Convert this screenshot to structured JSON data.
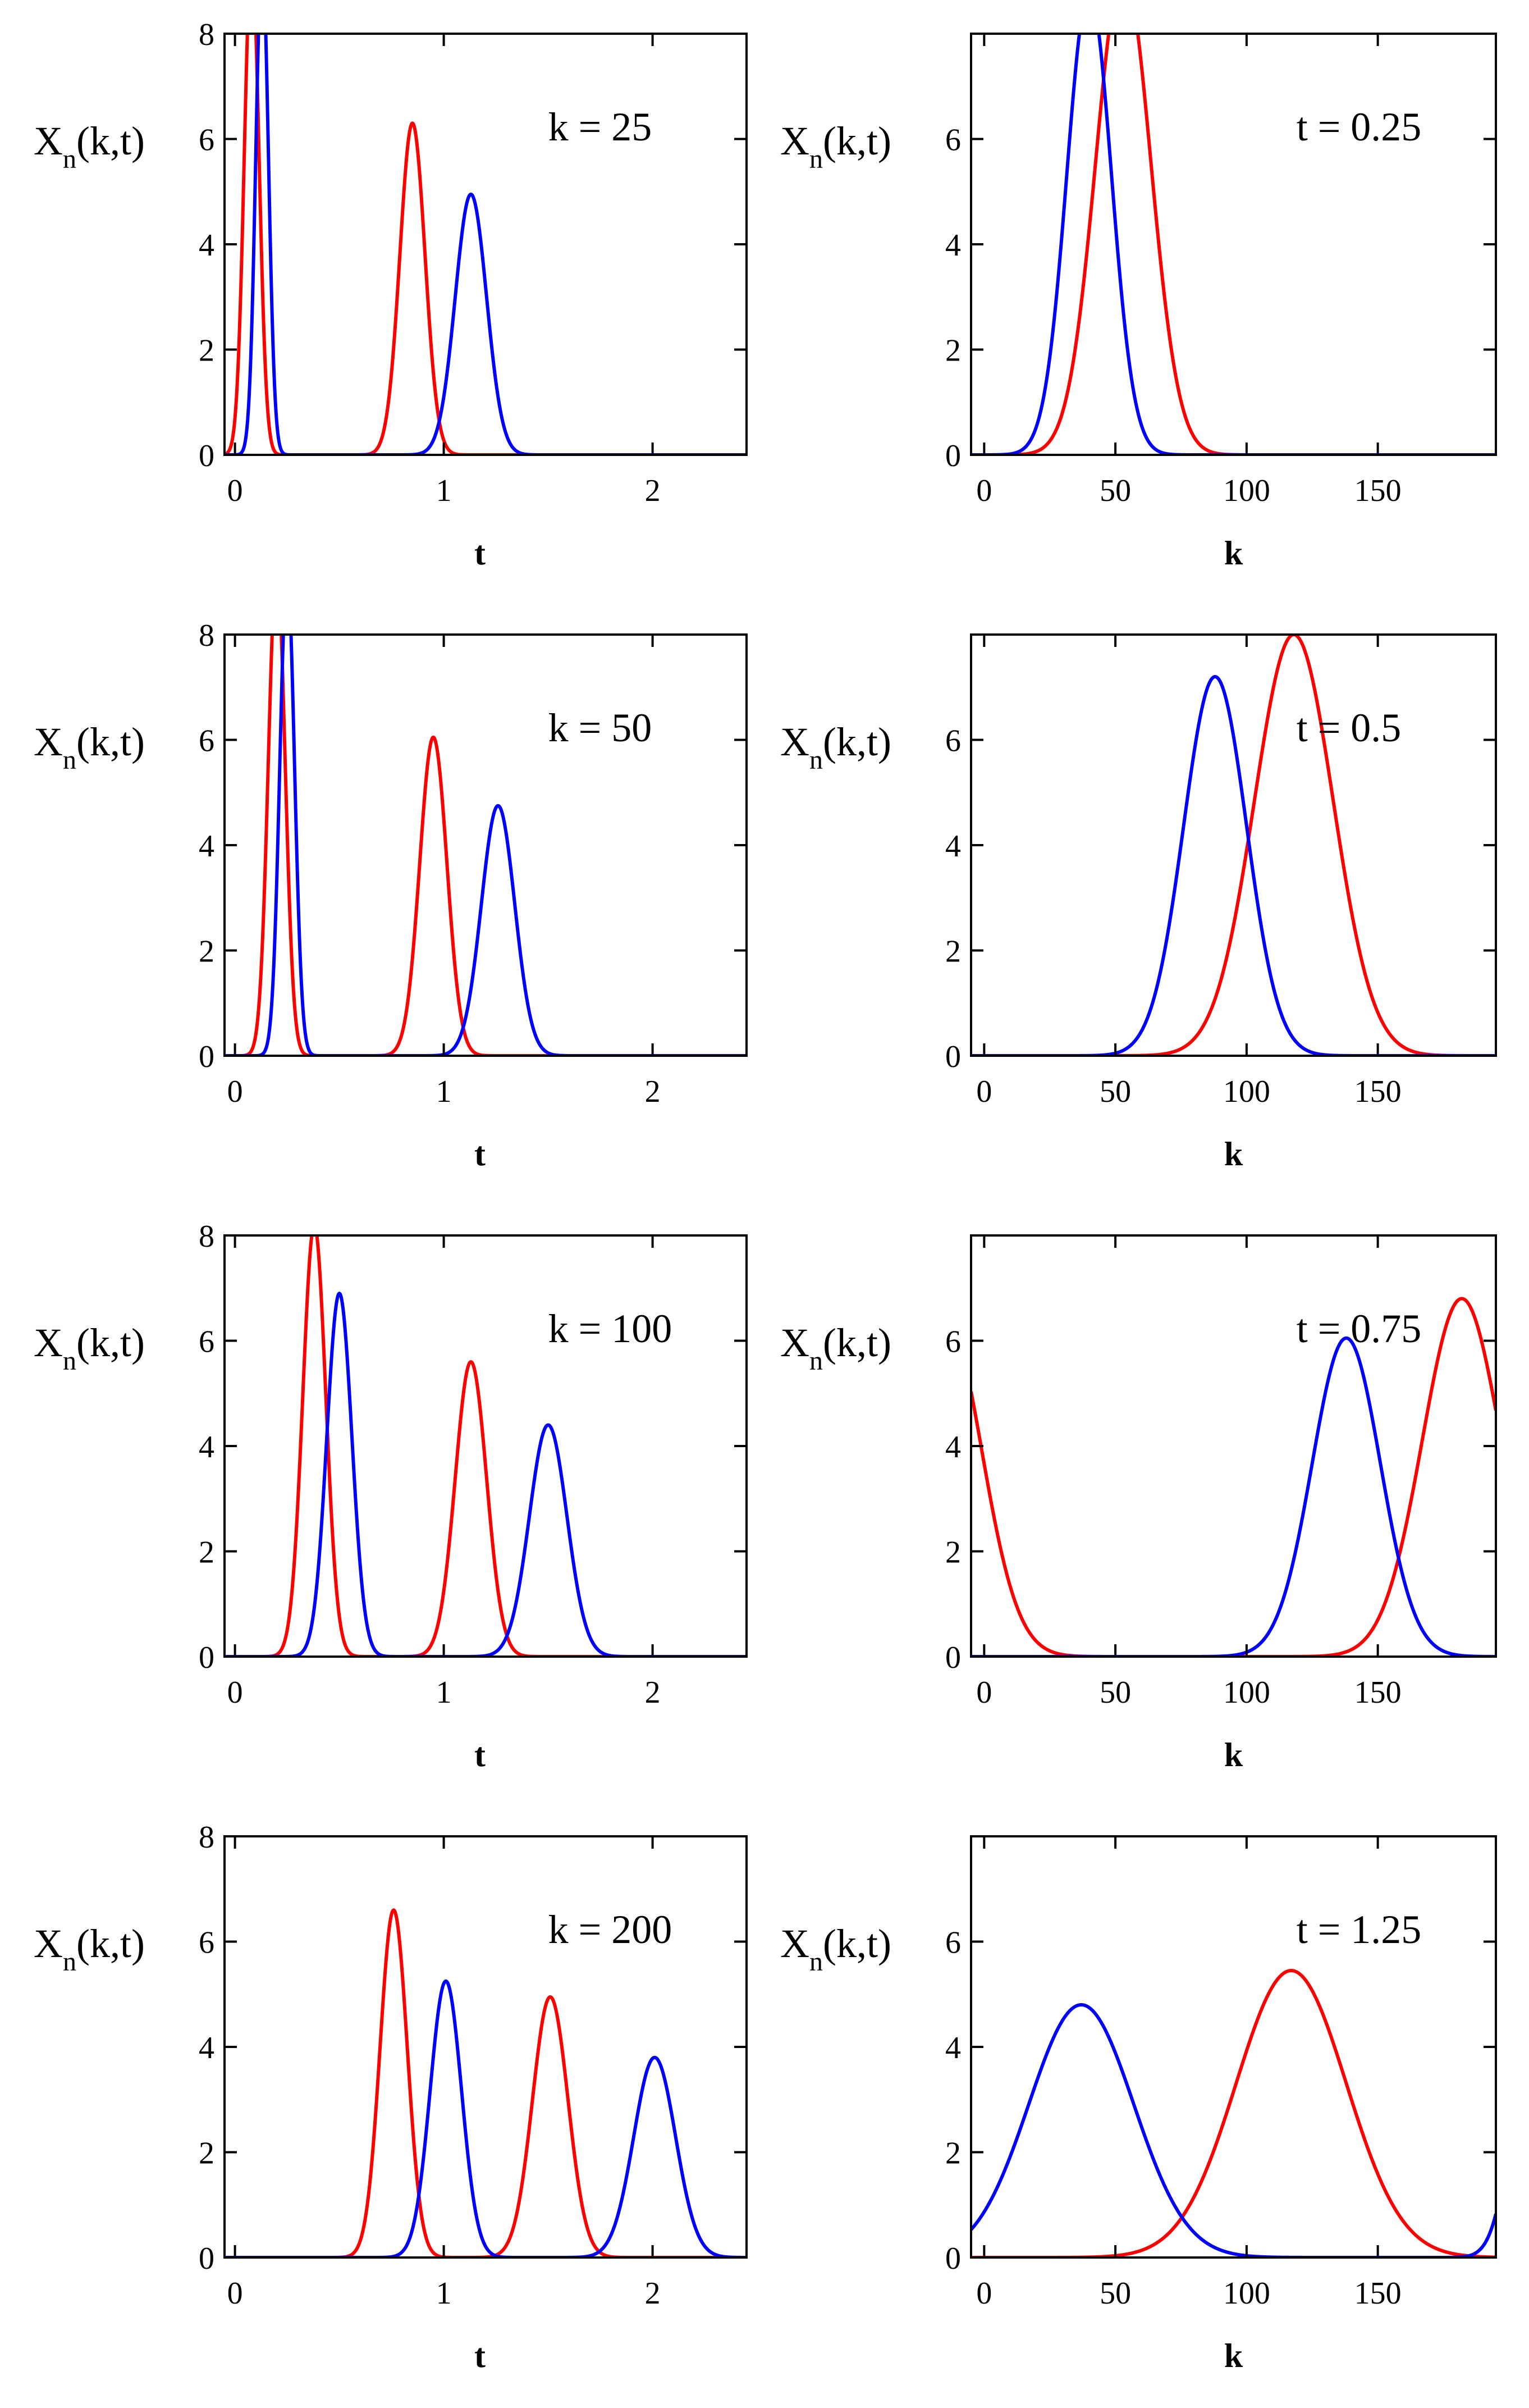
{
  "colors": {
    "series_a": "#ff0000",
    "series_b": "#0000ff",
    "axis": "#000000"
  },
  "chart_data": [
    {
      "type": "line",
      "row": 0,
      "col": 0,
      "annotation": "k = 25",
      "ylabel": {
        "main": "X",
        "sub": "n",
        "args": "(k,t)"
      },
      "xlabel": "t",
      "xlim": [
        -0.05,
        2.45
      ],
      "ylim": [
        0,
        8
      ],
      "xticks": [
        0,
        1,
        2
      ],
      "yticks": [
        0,
        2,
        4,
        6,
        8
      ],
      "ytick_labels": [
        "0",
        "2",
        "4",
        "6",
        "8"
      ],
      "series": [
        {
          "name": "red",
          "color": "#ff0000",
          "peaks": [
            {
              "center": 0.08,
              "amp": 9.5,
              "sigma": 0.035
            },
            {
              "center": 0.85,
              "amp": 6.3,
              "sigma": 0.06
            }
          ]
        },
        {
          "name": "blue",
          "color": "#0000ff",
          "peaks": [
            {
              "center": 0.13,
              "amp": 9.5,
              "sigma": 0.03
            },
            {
              "center": 1.13,
              "amp": 4.95,
              "sigma": 0.075
            }
          ]
        }
      ]
    },
    {
      "type": "line",
      "row": 0,
      "col": 1,
      "annotation": "t = 0.25",
      "ylabel": {
        "main": "X",
        "sub": "n",
        "args": "(k,t)"
      },
      "xlabel": "k",
      "xlim": [
        -5,
        195
      ],
      "ylim": [
        0,
        8
      ],
      "xticks": [
        0,
        50,
        100,
        150
      ],
      "yticks": [
        0,
        2,
        4,
        6,
        8
      ],
      "ytick_labels": [
        "0",
        "2",
        "4",
        "6",
        ""
      ],
      "series": [
        {
          "name": "red",
          "color": "#ff0000",
          "peaks": [
            {
              "center": 53,
              "amp": 9.2,
              "sigma": 10.5
            }
          ]
        },
        {
          "name": "blue",
          "color": "#0000ff",
          "peaks": [
            {
              "center": 40,
              "amp": 8.8,
              "sigma": 8.5
            }
          ]
        }
      ]
    },
    {
      "type": "line",
      "row": 1,
      "col": 0,
      "annotation": "k = 50",
      "ylabel": {
        "main": "X",
        "sub": "n",
        "args": "(k,t)"
      },
      "xlabel": "t",
      "xlim": [
        -0.05,
        2.45
      ],
      "ylim": [
        0,
        8
      ],
      "xticks": [
        0,
        1,
        2
      ],
      "yticks": [
        0,
        2,
        4,
        6,
        8
      ],
      "ytick_labels": [
        "0",
        "2",
        "4",
        "6",
        "8"
      ],
      "series": [
        {
          "name": "red",
          "color": "#ff0000",
          "peaks": [
            {
              "center": 0.2,
              "amp": 9.3,
              "sigma": 0.04
            },
            {
              "center": 0.95,
              "amp": 6.05,
              "sigma": 0.065
            }
          ]
        },
        {
          "name": "blue",
          "color": "#0000ff",
          "peaks": [
            {
              "center": 0.25,
              "amp": 9.2,
              "sigma": 0.035
            },
            {
              "center": 1.26,
              "amp": 4.75,
              "sigma": 0.08
            }
          ]
        }
      ]
    },
    {
      "type": "line",
      "row": 1,
      "col": 1,
      "annotation": "t = 0.5",
      "ylabel": {
        "main": "X",
        "sub": "n",
        "args": "(k,t)"
      },
      "xlabel": "k",
      "xlim": [
        -5,
        195
      ],
      "ylim": [
        0,
        8
      ],
      "xticks": [
        0,
        50,
        100,
        150
      ],
      "yticks": [
        0,
        2,
        4,
        6,
        8
      ],
      "ytick_labels": [
        "0",
        "2",
        "4",
        "6",
        ""
      ],
      "series": [
        {
          "name": "red",
          "color": "#ff0000",
          "peaks": [
            {
              "center": 118,
              "amp": 8.0,
              "sigma": 15
            }
          ]
        },
        {
          "name": "blue",
          "color": "#0000ff",
          "peaks": [
            {
              "center": 88,
              "amp": 7.2,
              "sigma": 12
            }
          ]
        }
      ]
    },
    {
      "type": "line",
      "row": 2,
      "col": 0,
      "annotation": "k = 100",
      "ylabel": {
        "main": "X",
        "sub": "n",
        "args": "(k,t)"
      },
      "xlabel": "t",
      "xlim": [
        -0.05,
        2.45
      ],
      "ylim": [
        0,
        8
      ],
      "xticks": [
        0,
        1,
        2
      ],
      "yticks": [
        0,
        2,
        4,
        6,
        8
      ],
      "ytick_labels": [
        "0",
        "2",
        "4",
        "6",
        "8"
      ],
      "series": [
        {
          "name": "red",
          "color": "#ff0000",
          "peaks": [
            {
              "center": 0.38,
              "amp": 8.2,
              "sigma": 0.055
            },
            {
              "center": 1.13,
              "amp": 5.6,
              "sigma": 0.075
            }
          ]
        },
        {
          "name": "blue",
          "color": "#0000ff",
          "peaks": [
            {
              "center": 0.5,
              "amp": 6.9,
              "sigma": 0.06
            },
            {
              "center": 1.5,
              "amp": 4.4,
              "sigma": 0.09
            }
          ]
        }
      ]
    },
    {
      "type": "line",
      "row": 2,
      "col": 1,
      "annotation": "t = 0.75",
      "ylabel": {
        "main": "X",
        "sub": "n",
        "args": "(k,t)"
      },
      "xlabel": "k",
      "xlim": [
        -5,
        195
      ],
      "ylim": [
        0,
        8
      ],
      "xticks": [
        0,
        50,
        100,
        150
      ],
      "yticks": [
        0,
        2,
        4,
        6,
        8
      ],
      "ytick_labels": [
        "0",
        "2",
        "4",
        "6",
        ""
      ],
      "series": [
        {
          "name": "red",
          "color": "#ff0000",
          "peaks": [
            {
              "center": -15,
              "amp": 6.5,
              "sigma": 14
            },
            {
              "center": 182,
              "amp": 6.8,
              "sigma": 15
            }
          ]
        },
        {
          "name": "blue",
          "color": "#0000ff",
          "peaks": [
            {
              "center": 138,
              "amp": 6.05,
              "sigma": 13
            }
          ]
        }
      ]
    },
    {
      "type": "line",
      "row": 3,
      "col": 0,
      "annotation": "k = 200",
      "ylabel": {
        "main": "X",
        "sub": "n",
        "args": "(k,t)"
      },
      "xlabel": "t",
      "xlim": [
        -0.05,
        2.45
      ],
      "ylim": [
        0,
        8
      ],
      "xticks": [
        0,
        1,
        2
      ],
      "yticks": [
        0,
        2,
        4,
        6,
        8
      ],
      "ytick_labels": [
        "0",
        "2",
        "4",
        "6",
        "8"
      ],
      "series": [
        {
          "name": "red",
          "color": "#ff0000",
          "peaks": [
            {
              "center": 0.76,
              "amp": 6.6,
              "sigma": 0.065
            },
            {
              "center": 1.51,
              "amp": 4.95,
              "sigma": 0.085
            }
          ]
        },
        {
          "name": "blue",
          "color": "#0000ff",
          "peaks": [
            {
              "center": 1.01,
              "amp": 5.25,
              "sigma": 0.075
            },
            {
              "center": 2.01,
              "amp": 3.8,
              "sigma": 0.1
            }
          ]
        }
      ]
    },
    {
      "type": "line",
      "row": 3,
      "col": 1,
      "annotation": "t = 1.25",
      "ylabel": {
        "main": "X",
        "sub": "n",
        "args": "(k,t)"
      },
      "xlabel": "k",
      "xlim": [
        -5,
        195
      ],
      "ylim": [
        0,
        8
      ],
      "xticks": [
        0,
        50,
        100,
        150
      ],
      "yticks": [
        0,
        2,
        4,
        6,
        8
      ],
      "ytick_labels": [
        "0",
        "2",
        "4",
        "6",
        ""
      ],
      "series": [
        {
          "name": "red",
          "color": "#ff0000",
          "peaks": [
            {
              "center": 117,
              "amp": 5.45,
              "sigma": 21
            }
          ]
        },
        {
          "name": "blue",
          "color": "#0000ff",
          "peaks": [
            {
              "center": 37,
              "amp": 4.8,
              "sigma": 20
            },
            {
              "center": 210,
              "amp": 4.8,
              "sigma": 8
            }
          ]
        }
      ]
    }
  ]
}
